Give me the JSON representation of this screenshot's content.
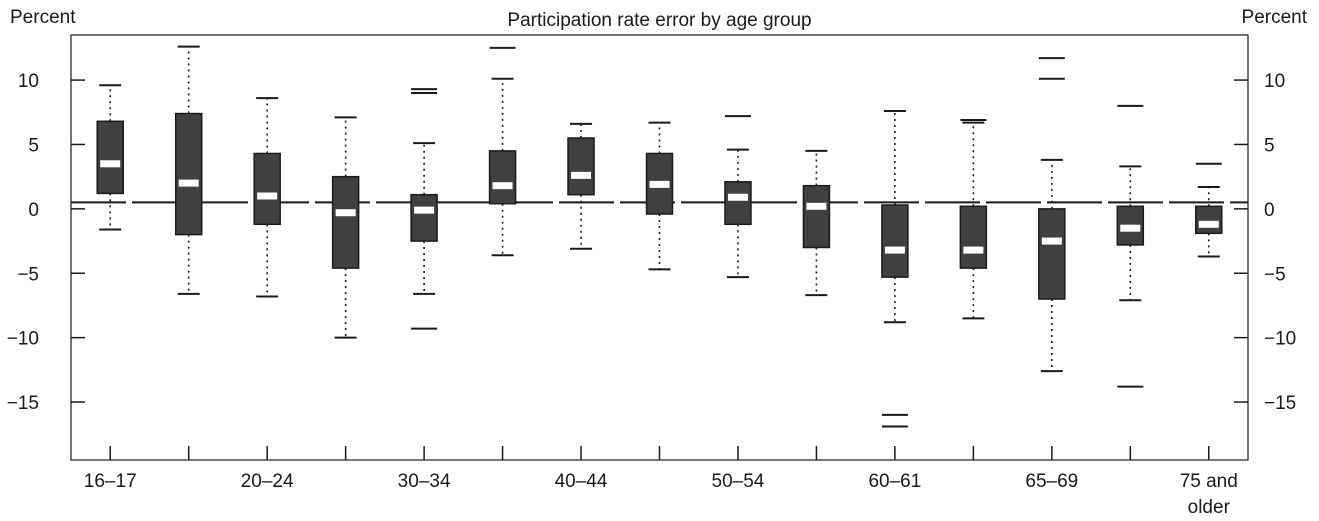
{
  "chart_data": {
    "type": "box",
    "title": "Participation rate error by age group",
    "ylabel_left": "Percent",
    "ylabel_right": "Percent",
    "ylim": [
      -19.5,
      13.5
    ],
    "yticks": [
      10,
      5,
      0,
      -5,
      -10,
      -15
    ],
    "ytick_labels": [
      "10",
      "5",
      "0",
      "−5",
      "−10",
      "−15"
    ],
    "x_tick_labels": [
      "16–17",
      "",
      "20–24",
      "",
      "30–34",
      "",
      "40–44",
      "",
      "50–54",
      "",
      "60–61",
      "",
      "65–69",
      "",
      "75 and older"
    ],
    "reference_line": 0.5,
    "boxes": [
      {
        "q1": 1.2,
        "median": 3.5,
        "q3": 6.8,
        "whisker_low": -1.6,
        "whisker_high": 9.6,
        "outliers": []
      },
      {
        "q1": -2.0,
        "median": 2.0,
        "q3": 7.4,
        "whisker_low": -6.6,
        "whisker_high": 12.6,
        "outliers": []
      },
      {
        "q1": -1.2,
        "median": 1.0,
        "q3": 4.3,
        "whisker_low": -6.8,
        "whisker_high": 8.6,
        "outliers": []
      },
      {
        "q1": -4.6,
        "median": -0.3,
        "q3": 2.5,
        "whisker_low": -10.0,
        "whisker_high": 7.1,
        "outliers": []
      },
      {
        "q1": -2.5,
        "median": -0.1,
        "q3": 1.1,
        "whisker_low": -6.6,
        "whisker_high": 5.1,
        "outliers": [
          9.0,
          9.3,
          -9.3
        ]
      },
      {
        "q1": 0.4,
        "median": 1.8,
        "q3": 4.5,
        "whisker_low": -3.6,
        "whisker_high": 10.1,
        "outliers": [
          12.5
        ]
      },
      {
        "q1": 1.1,
        "median": 2.6,
        "q3": 5.5,
        "whisker_low": -3.1,
        "whisker_high": 6.6,
        "outliers": []
      },
      {
        "q1": -0.4,
        "median": 1.9,
        "q3": 4.3,
        "whisker_low": -4.7,
        "whisker_high": 6.7,
        "outliers": []
      },
      {
        "q1": -1.2,
        "median": 0.9,
        "q3": 2.1,
        "whisker_low": -5.3,
        "whisker_high": 4.6,
        "outliers": [
          7.2
        ]
      },
      {
        "q1": -3.0,
        "median": 0.2,
        "q3": 1.8,
        "whisker_low": -6.7,
        "whisker_high": 4.5,
        "outliers": []
      },
      {
        "q1": -5.3,
        "median": -3.2,
        "q3": 0.3,
        "whisker_low": -8.8,
        "whisker_high": 7.6,
        "outliers": [
          -16.0,
          -16.9
        ]
      },
      {
        "q1": -4.6,
        "median": -3.2,
        "q3": 0.2,
        "whisker_low": -8.5,
        "whisker_high": 6.7,
        "outliers": [
          6.9
        ]
      },
      {
        "q1": -7.0,
        "median": -2.5,
        "q3": 0.0,
        "whisker_low": -12.6,
        "whisker_high": 3.8,
        "outliers": [
          10.1,
          11.7
        ]
      },
      {
        "q1": -2.8,
        "median": -1.5,
        "q3": 0.2,
        "whisker_low": -7.1,
        "whisker_high": 3.3,
        "outliers": [
          8.0,
          -13.8
        ]
      },
      {
        "q1": -1.9,
        "median": -1.2,
        "q3": 0.2,
        "whisker_low": -3.7,
        "whisker_high": 1.7,
        "outliers": [
          3.5
        ]
      }
    ]
  }
}
